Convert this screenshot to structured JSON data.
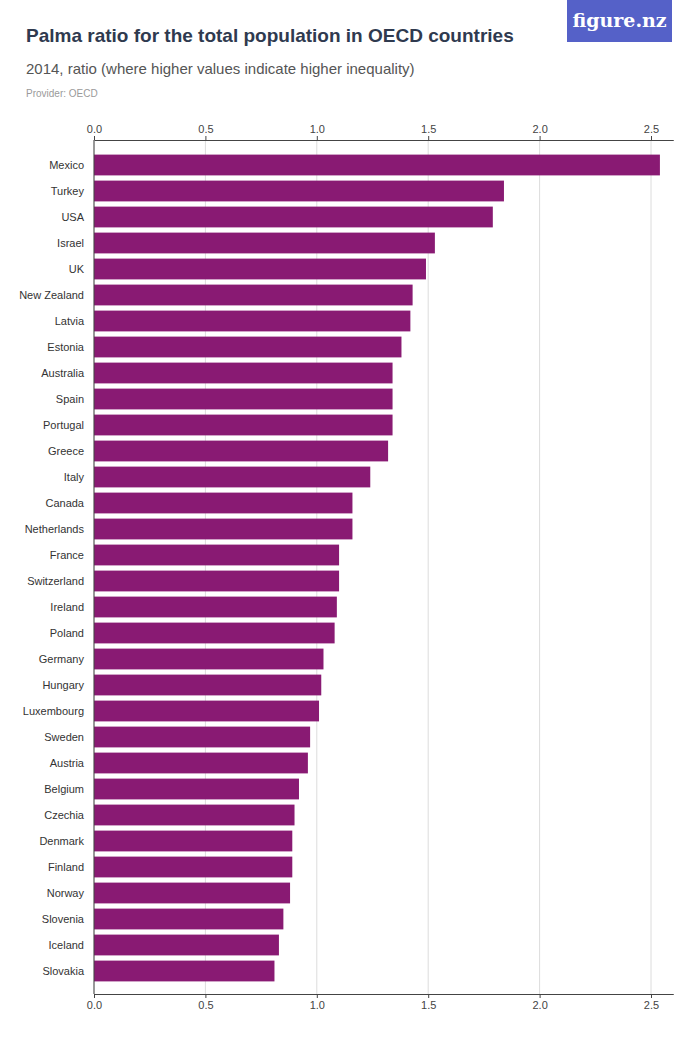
{
  "chart_data": {
    "type": "bar",
    "orientation": "horizontal",
    "title": "Palma ratio for the total population in OECD countries",
    "subtitle": "2014, ratio (where higher values indicate higher inequality)",
    "annotations": [
      "Provider: OECD",
      "figure.nz"
    ],
    "categories": [
      "Mexico",
      "Turkey",
      "USA",
      "Israel",
      "UK",
      "New Zealand",
      "Latvia",
      "Estonia",
      "Australia",
      "Spain",
      "Portugal",
      "Greece",
      "Italy",
      "Canada",
      "Netherlands",
      "France",
      "Switzerland",
      "Ireland",
      "Poland",
      "Germany",
      "Hungary",
      "Luxembourg",
      "Sweden",
      "Austria",
      "Belgium",
      "Czechia",
      "Denmark",
      "Finland",
      "Norway",
      "Slovenia",
      "Iceland",
      "Slovakia"
    ],
    "values": [
      2.54,
      1.84,
      1.79,
      1.53,
      1.49,
      1.43,
      1.42,
      1.38,
      1.34,
      1.34,
      1.34,
      1.32,
      1.24,
      1.16,
      1.16,
      1.1,
      1.1,
      1.09,
      1.08,
      1.03,
      1.02,
      1.01,
      0.97,
      0.96,
      0.92,
      0.9,
      0.89,
      0.89,
      0.88,
      0.85,
      0.83,
      0.81
    ],
    "color": "#891a73",
    "xlim": [
      0,
      2.6
    ],
    "xticks": [
      {
        "value": 0,
        "label": "0.0"
      },
      0.5,
      {
        "value": 1,
        "label": "1.0"
      },
      1.5,
      {
        "value": 2,
        "label": "2.0"
      },
      2.5
    ],
    "grid": true
  }
}
